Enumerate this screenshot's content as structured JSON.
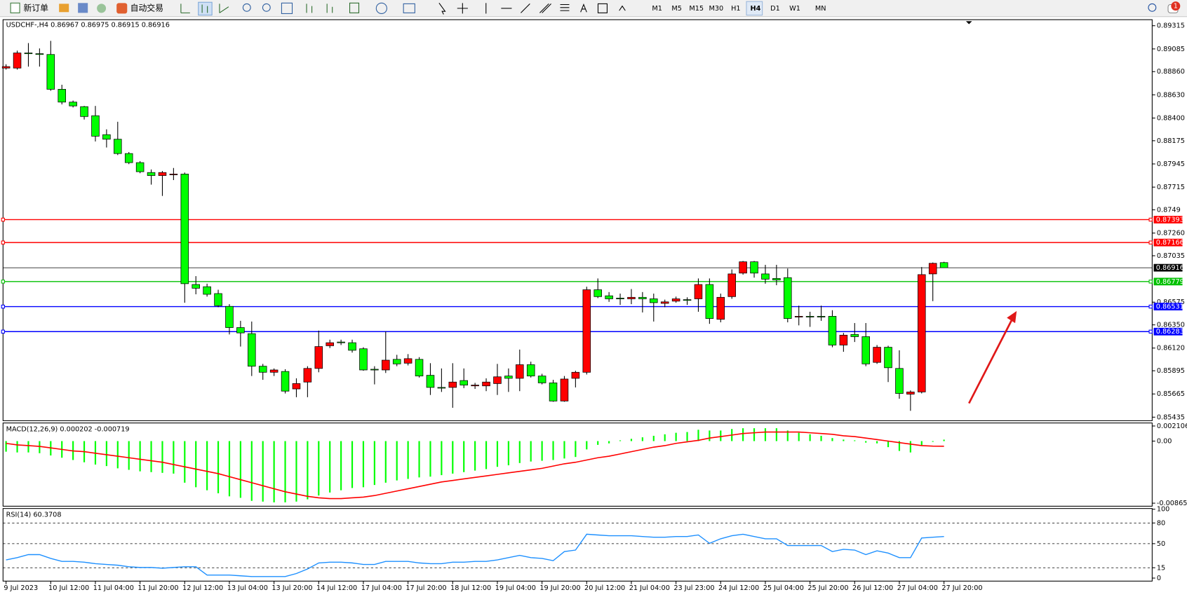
{
  "toolbar": {
    "buttons": [
      "新订单",
      "自动交易"
    ],
    "timeframes": [
      "M1",
      "M5",
      "M15",
      "M30",
      "H1",
      "H4",
      "D1",
      "W1",
      "MN"
    ],
    "active_timeframe": 5,
    "alerts": 1
  },
  "chart_data": [
    {
      "type": "candlestick",
      "symbol": "USDCHF-,H4",
      "up_color": "#ff0000",
      "down_color": "#00ff00",
      "categories": [
        "9 Jul 2023",
        null,
        null,
        null,
        "10 Jul 12:00",
        null,
        null,
        null,
        "11 Jul 04:00",
        null,
        null,
        null,
        "11 Jul 20:00",
        null,
        null,
        null,
        "12 Jul 12:00",
        null,
        null,
        null,
        "13 Jul 04:00",
        null,
        null,
        null,
        "13 Jul 20:00",
        null,
        null,
        null,
        "14 Jul 12:00",
        null,
        null,
        null,
        "17 Jul 04:00",
        null,
        null,
        null,
        "17 Jul 20:00",
        null,
        null,
        null,
        "18 Jul 12:00",
        null,
        null,
        null,
        "19 Jul 04:00",
        null,
        null,
        null,
        "19 Jul 20:00",
        null,
        null,
        null,
        "20 Jul 12:00",
        null,
        null,
        null,
        "21 Jul 04:00",
        null,
        null,
        null,
        "23 Jul 23:00",
        null,
        null,
        null,
        "24 Jul 12:00",
        null,
        null,
        null,
        "25 Jul 04:00",
        null,
        null,
        null,
        "25 Jul 20:00",
        null,
        null,
        null,
        "26 Jul 12:00",
        null,
        null,
        null,
        "27 Jul 04:00",
        null,
        null,
        null,
        "27 Jul 20:00"
      ],
      "ohlc": [
        [
          0.88895,
          0.88933,
          0.8888,
          0.8891
        ],
        [
          0.88895,
          0.89068,
          0.8888,
          0.89045
        ],
        [
          0.89045,
          0.89143,
          0.8891,
          0.89038
        ],
        [
          0.89038,
          0.8909,
          0.8891,
          0.8903
        ],
        [
          0.8903,
          0.89165,
          0.8867,
          0.88685
        ],
        [
          0.88685,
          0.8873,
          0.88535,
          0.88558
        ],
        [
          0.88558,
          0.88573,
          0.88505,
          0.8852
        ],
        [
          0.88513,
          0.8852,
          0.88385,
          0.88415
        ],
        [
          0.88423,
          0.8852,
          0.88168,
          0.8822
        ],
        [
          0.88235,
          0.88288,
          0.88108,
          0.8819
        ],
        [
          0.8819,
          0.88363,
          0.88033,
          0.88048
        ],
        [
          0.88048,
          0.88063,
          0.87943,
          0.87958
        ],
        [
          0.87958,
          0.87973,
          0.87853,
          0.87868
        ],
        [
          0.8786,
          0.8789,
          0.8774,
          0.8783
        ],
        [
          0.8783,
          0.87875,
          0.87628,
          0.8786
        ],
        [
          0.87838,
          0.87905,
          0.87785,
          0.87845
        ],
        [
          0.87845,
          0.8786,
          0.8657,
          0.86758
        ],
        [
          0.8675,
          0.86833,
          0.86653,
          0.86713
        ],
        [
          0.86728,
          0.86758,
          0.8663,
          0.86653
        ],
        [
          0.8666,
          0.86698,
          0.86525,
          0.8654
        ],
        [
          0.86533,
          0.86555,
          0.86255,
          0.86323
        ],
        [
          0.86323,
          0.8639,
          0.86135,
          0.8627
        ],
        [
          0.86263,
          0.86383,
          0.85843,
          0.8594
        ],
        [
          0.8594,
          0.85963,
          0.85805,
          0.8588
        ],
        [
          0.8588,
          0.85918,
          0.85843,
          0.85903
        ],
        [
          0.85888,
          0.8591,
          0.8567,
          0.85693
        ],
        [
          0.85715,
          0.8582,
          0.85633,
          0.85768
        ],
        [
          0.85783,
          0.8594,
          0.85633,
          0.85918
        ],
        [
          0.85918,
          0.86293,
          0.8588,
          0.86135
        ],
        [
          0.86143,
          0.86203,
          0.8612,
          0.86173
        ],
        [
          0.8618,
          0.86203,
          0.8615,
          0.86173
        ],
        [
          0.86173,
          0.86203,
          0.86075,
          0.86098
        ],
        [
          0.86113,
          0.86128,
          0.85895,
          0.85903
        ],
        [
          0.8591,
          0.8594,
          0.8576,
          0.85903
        ],
        [
          0.85903,
          0.86285,
          0.85873,
          0.86
        ],
        [
          0.86008,
          0.86053,
          0.8594,
          0.85963
        ],
        [
          0.8597,
          0.8606,
          0.85948,
          0.86015
        ],
        [
          0.86008,
          0.8603,
          0.85828,
          0.85843
        ],
        [
          0.8585,
          0.8597,
          0.85655,
          0.8573
        ],
        [
          0.8573,
          0.85918,
          0.85685,
          0.85723
        ],
        [
          0.8573,
          0.8597,
          0.85528,
          0.85783
        ],
        [
          0.85798,
          0.85918,
          0.85723,
          0.85753
        ],
        [
          0.85745,
          0.85775,
          0.85715,
          0.85753
        ],
        [
          0.85745,
          0.8582,
          0.85693,
          0.85783
        ],
        [
          0.85768,
          0.85963,
          0.85655,
          0.85835
        ],
        [
          0.85843,
          0.85918,
          0.85685,
          0.8582
        ],
        [
          0.8582,
          0.86105,
          0.85693,
          0.85955
        ],
        [
          0.85955,
          0.85985,
          0.85828,
          0.85843
        ],
        [
          0.85843,
          0.85865,
          0.8576,
          0.85775
        ],
        [
          0.85775,
          0.85805,
          0.85588,
          0.85595
        ],
        [
          0.85595,
          0.85843,
          0.85588,
          0.85813
        ],
        [
          0.8582,
          0.85895,
          0.8573,
          0.8588
        ],
        [
          0.8588,
          0.86728,
          0.85858,
          0.86698
        ],
        [
          0.86698,
          0.8681,
          0.86615,
          0.8663
        ],
        [
          0.86638,
          0.86675,
          0.86578,
          0.86608
        ],
        [
          0.86615,
          0.8666,
          0.86548,
          0.86608
        ],
        [
          0.86608,
          0.86705,
          0.86555,
          0.86623
        ],
        [
          0.86623,
          0.86675,
          0.86473,
          0.86608
        ],
        [
          0.86608,
          0.8666,
          0.86383,
          0.8657
        ],
        [
          0.86563,
          0.866,
          0.86525,
          0.86578
        ],
        [
          0.86585,
          0.8663,
          0.8657,
          0.86608
        ],
        [
          0.866,
          0.86623,
          0.86548,
          0.86593
        ],
        [
          0.86608,
          0.8681,
          0.8648,
          0.8675
        ],
        [
          0.8675,
          0.8681,
          0.8636,
          0.86413
        ],
        [
          0.86405,
          0.8666,
          0.86375,
          0.86623
        ],
        [
          0.8663,
          0.869,
          0.86608,
          0.86855
        ],
        [
          0.86863,
          0.86983,
          0.86848,
          0.86975
        ],
        [
          0.86975,
          0.86983,
          0.86818,
          0.86863
        ],
        [
          0.86855,
          0.86945,
          0.86758,
          0.86803
        ],
        [
          0.8681,
          0.86945,
          0.86743,
          0.86795
        ],
        [
          0.86818,
          0.86908,
          0.86375,
          0.86413
        ],
        [
          0.86428,
          0.8654,
          0.86345,
          0.86435
        ],
        [
          0.86435,
          0.8648,
          0.8633,
          0.86428
        ],
        [
          0.86435,
          0.8654,
          0.8639,
          0.86428
        ],
        [
          0.86435,
          0.86495,
          0.86128,
          0.8615
        ],
        [
          0.8615,
          0.8627,
          0.86083,
          0.86248
        ],
        [
          0.86255,
          0.86368,
          0.8618,
          0.86233
        ],
        [
          0.86233,
          0.86368,
          0.8594,
          0.85963
        ],
        [
          0.85978,
          0.8615,
          0.85963,
          0.86128
        ],
        [
          0.86128,
          0.86143,
          0.85783,
          0.85925
        ],
        [
          0.85918,
          0.86098,
          0.85618,
          0.8567
        ],
        [
          0.85663,
          0.857,
          0.85498,
          0.85685
        ],
        [
          0.85685,
          0.86923,
          0.8567,
          0.86848
        ],
        [
          0.86855,
          0.86968,
          0.86585,
          0.8696
        ],
        [
          0.86967,
          0.86975,
          0.86915,
          0.86916
        ]
      ],
      "ylim": [
        0.854,
        0.89375
      ],
      "yticks": [
        0.89315,
        0.89085,
        {
          "value": 0.8886,
          "label": "0.88860"
        },
        {
          "value": 0.8863,
          "label": "0.88630"
        },
        {
          "value": 0.884,
          "label": "0.88400"
        },
        0.88175,
        0.87945,
        0.87715,
        0.8749,
        {
          "value": 0.8726,
          "label": "0.87260"
        },
        0.87035,
        0.86575,
        {
          "value": 0.8635,
          "label": "0.86350"
        },
        {
          "value": 0.8612,
          "label": "0.86120"
        },
        0.85895,
        0.85665,
        0.85435
      ],
      "levels": [
        {
          "value": 0.87393,
          "color": "#ff0000"
        },
        {
          "value": 0.87166,
          "color": "#ff0000"
        },
        {
          "value": 0.86779,
          "color": "#00c000"
        },
        {
          "value": 0.86531,
          "color": "#0000ff"
        },
        {
          "value": 0.86283,
          "color": "#0000ff"
        }
      ]
    },
    {
      "type": "macd",
      "title": "MACD(12,26,9)",
      "ylim": [
        -0.008658,
        0.002106
      ],
      "yticks": [
        0.002106,
        {
          "value": 0,
          "label": "0.00"
        },
        -0.008658
      ],
      "series": [
        {
          "type": "bar",
          "color": "#00ff00",
          "values": [
            -0.001477,
            -0.001583,
            -0.001583,
            -0.001688,
            -0.002005,
            -0.002321,
            -0.002638,
            -0.002954,
            -0.003271,
            -0.003482,
            -0.003798,
            -0.004009,
            -0.00422,
            -0.004326,
            -0.004431,
            -0.004537,
            -0.005803,
            -0.006436,
            -0.006858,
            -0.00728,
            -0.007702,
            -0.007913,
            -0.008335,
            -0.00844,
            -0.008546,
            -0.008546,
            -0.00844,
            -0.008124,
            -0.007596,
            -0.007174,
            -0.006858,
            -0.006541,
            -0.006436,
            -0.006119,
            -0.005803,
            -0.005486,
            -0.005275,
            -0.005064,
            -0.004959,
            -0.004748,
            -0.004537,
            -0.004326,
            -0.004115,
            -0.003904,
            -0.003587,
            -0.003376,
            -0.00306,
            -0.002849,
            -0.002743,
            -0.002638,
            -0.002427,
            -0.002216,
            -0.001161,
            -0.000528,
            -0.000317,
            0.000106,
            0.000317,
            0.000528,
            0.000739,
            0.00095,
            0.001161,
            0.001266,
            0.001583,
            0.001477,
            0.001477,
            0.001688,
            0.001794,
            0.001794,
            0.001794,
            0.001794,
            0.001477,
            0.001161,
            0.00095,
            0.000739,
            0.000422,
            0.000211,
            0.000106,
            -0.000211,
            -0.000317,
            -0.000844,
            -0.001372,
            -0.001583,
            -0.000633,
            -0.000106,
            0.000202
          ]
        },
        {
          "type": "line",
          "color": "#ff0000",
          "values": [
            -0.000317,
            -0.000528,
            -0.000633,
            -0.000739,
            -0.00095,
            -0.001161,
            -0.001372,
            -0.001477,
            -0.001688,
            -0.001899,
            -0.00211,
            -0.002321,
            -0.002532,
            -0.002743,
            -0.002954,
            -0.003271,
            -0.003587,
            -0.003904,
            -0.00422,
            -0.004537,
            -0.004959,
            -0.005381,
            -0.005803,
            -0.006225,
            -0.006647,
            -0.007069,
            -0.007385,
            -0.007702,
            -0.007913,
            -0.008018,
            -0.008018,
            -0.007913,
            -0.007807,
            -0.007596,
            -0.00728,
            -0.006963,
            -0.006647,
            -0.00633,
            -0.006014,
            -0.005697,
            -0.005486,
            -0.005275,
            -0.005064,
            -0.004853,
            -0.004642,
            -0.004431,
            -0.00422,
            -0.004009,
            -0.003798,
            -0.003482,
            -0.003165,
            -0.002954,
            -0.002638,
            -0.002321,
            -0.00211,
            -0.001794,
            -0.001477,
            -0.001161,
            -0.000844,
            -0.000633,
            -0.000317,
            -0.000106,
            0.000106,
            0.000422,
            0.000633,
            0.000844,
            0.001055,
            0.001161,
            0.001266,
            0.001266,
            0.001266,
            0.001266,
            0.001161,
            0.001055,
            0.00095,
            0.000739,
            0.000633,
            0.000422,
            0.000211,
            0,
            -0.000211,
            -0.000422,
            -0.000633,
            -0.0007,
            -0.000719
          ]
        }
      ]
    },
    {
      "type": "rsi",
      "title": "RSI(14)",
      "color": "#1e90ff",
      "ylim": [
        0,
        100
      ],
      "yticks": [
        100,
        80,
        50,
        15,
        0
      ],
      "levels": [
        80,
        50,
        15
      ],
      "values": [
        26.4,
        29.7,
        34.1,
        34.1,
        28.6,
        24.2,
        24.2,
        23.1,
        20.9,
        19.8,
        18.7,
        16.5,
        15.4,
        15.4,
        14.3,
        15.4,
        16.5,
        16.5,
        4.4,
        4.4,
        4.4,
        3.3,
        2.2,
        2.2,
        2.2,
        2.2,
        6.6,
        13.2,
        22.0,
        23.1,
        23.1,
        22.0,
        19.8,
        19.8,
        24.2,
        24.2,
        24.2,
        22.0,
        20.9,
        20.9,
        23.1,
        23.1,
        24.2,
        24.2,
        26.4,
        29.7,
        33.0,
        29.7,
        28.6,
        25.3,
        38.5,
        40.7,
        63.7,
        62.6,
        61.5,
        61.5,
        61.5,
        60.4,
        59.3,
        59.3,
        60.4,
        60.4,
        62.6,
        50.5,
        57.1,
        61.5,
        63.7,
        60.4,
        57.1,
        57.1,
        47.3,
        47.3,
        47.3,
        47.3,
        38.5,
        41.8,
        40.7,
        34.1,
        39.6,
        36.3,
        29.7,
        29.7,
        58.2,
        59.3,
        60.3708
      ]
    }
  ]
}
